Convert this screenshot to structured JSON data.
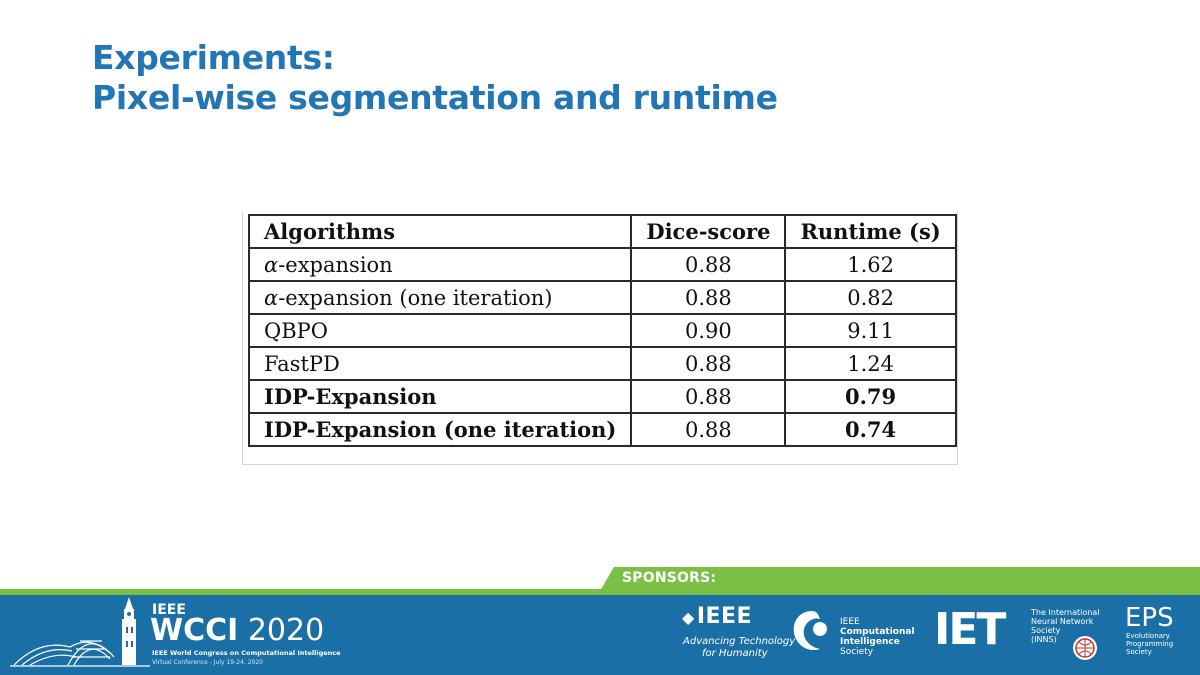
{
  "slide": {
    "title_line1": "Experiments:",
    "title_line2": "Pixel-wise segmentation and runtime"
  },
  "table": {
    "headers": [
      "Algorithms",
      "Dice-score",
      "Runtime (s)"
    ],
    "rows": [
      {
        "alpha": "α",
        "name": "-expansion",
        "dice": "0.88",
        "runtime": "1.62"
      },
      {
        "alpha": "α",
        "name": "-expansion (one iteration)",
        "dice": "0.88",
        "runtime": "0.82"
      },
      {
        "alpha": "",
        "name": "QBPO",
        "dice": "0.90",
        "runtime": "9.11"
      },
      {
        "alpha": "",
        "name": "FastPD",
        "dice": "0.88",
        "runtime": "1.24"
      },
      {
        "alpha": "",
        "name": "IDP-Expansion",
        "dice": "0.88",
        "runtime": "0.79"
      },
      {
        "alpha": "",
        "name": "IDP-Expansion (one iteration)",
        "dice": "0.88",
        "runtime": "0.74"
      }
    ]
  },
  "footer": {
    "sponsors_label": "SPONSORS:",
    "wcci_ieee": "IEEE",
    "wcci_bold": "WCCI",
    "wcci_year": " 2020",
    "wcci_sub": "IEEE World Congress on Computational Intelligence",
    "wcci_sub2": "Virtual Conference - July 19-24, 2020",
    "ieee_logo": "IEEE",
    "ieee_tag1": "Advancing Technology",
    "ieee_tag2": "for Humanity",
    "cis_l1": "IEEE",
    "cis_l2": "Computational",
    "cis_l3": "Intelligence",
    "cis_l4": "Society",
    "iet_logo": "IET",
    "inns_l1": "The International",
    "inns_l2": "Neural Network",
    "inns_l3": "Society",
    "inns_l4": "(INNS)",
    "eps_logo": "EPS",
    "eps_l1": "Evolutionary",
    "eps_l2": "Programming",
    "eps_l3": "Society"
  },
  "colors": {
    "title": "#2276b5",
    "footer_blue": "#1a6fa6",
    "sponsor_green": "#7bbf45"
  }
}
